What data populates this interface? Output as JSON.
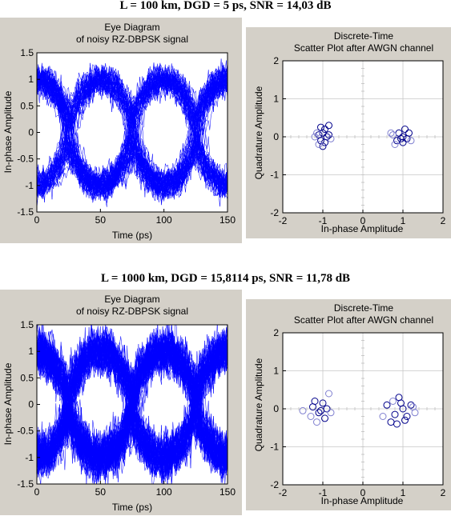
{
  "sections": [
    {
      "heading": "L = 100 km, DGD = 5 ps, SNR = 14,03 dB",
      "eye": {
        "title1": "Eye Diagram",
        "title2": "of noisy RZ-DBPSK signal",
        "xlabel": "Time (ps)",
        "ylabel": "In-phase Amplitude"
      },
      "scatter": {
        "title1": "Discrete-Time",
        "title2": "Scatter Plot after AWGN channel",
        "xlabel": "In-phase Amplitude",
        "ylabel": "Quadrature Amplitude"
      }
    },
    {
      "heading": "L = 1000 km, DGD = 15,8114 ps, SNR = 11,78 dB",
      "eye": {
        "title1": "Eye Diagram",
        "title2": "of noisy RZ-DBPSK signal",
        "xlabel": "Time (ps)",
        "ylabel": "In-phase Amplitude"
      },
      "scatter": {
        "title1": "Discrete-Time",
        "title2": "Scatter Plot after AWGN channel",
        "xlabel": "In-phase Amplitude",
        "ylabel": "Quadrature Amplitude"
      }
    }
  ],
  "chart_data": [
    {
      "type": "line",
      "subtype": "eye-diagram",
      "title": "Eye Diagram of noisy RZ-DBPSK signal",
      "xlabel": "Time (ps)",
      "ylabel": "In-phase Amplitude",
      "xlim": [
        0,
        150
      ],
      "ylim": [
        -1.5,
        1.5
      ],
      "xticks": [
        0,
        50,
        100,
        150
      ],
      "yticks": [
        -1.5,
        -1,
        -0.5,
        0,
        0.5,
        1,
        1.5
      ],
      "symbol_period_ps": 50,
      "crossing_times_ps": [
        0,
        50,
        100,
        150
      ],
      "levels": [
        -1,
        1
      ],
      "noise_std": 0.1,
      "trace_count": 90,
      "trace_color": "#0000ff",
      "grid": false
    },
    {
      "type": "scatter",
      "title": "Discrete-Time Scatter Plot after AWGN channel",
      "xlabel": "In-phase Amplitude",
      "ylabel": "Quadrature Amplitude",
      "xlim": [
        -2,
        2
      ],
      "ylim": [
        -2,
        2
      ],
      "xticks": [
        -2,
        -1,
        0,
        1,
        2
      ],
      "yticks": [
        -2,
        -1,
        0,
        1,
        2
      ],
      "grid": true,
      "series": [
        {
          "color": "#00008b",
          "points": [
            [
              -1.05,
              0.25
            ],
            [
              -0.95,
              0.2
            ],
            [
              -0.85,
              0.3
            ],
            [
              -1.0,
              0.1
            ],
            [
              -0.9,
              0.0
            ],
            [
              -1.05,
              -0.1
            ],
            [
              -0.95,
              -0.15
            ],
            [
              -1.0,
              -0.25
            ],
            [
              -0.85,
              0.05
            ],
            [
              -1.1,
              0.05
            ],
            [
              0.9,
              0.1
            ],
            [
              1.05,
              0.2
            ],
            [
              0.95,
              -0.05
            ],
            [
              1.0,
              -0.15
            ],
            [
              1.1,
              -0.05
            ],
            [
              1.15,
              0.1
            ],
            [
              0.85,
              -0.1
            ],
            [
              1.0,
              0.0
            ]
          ]
        },
        {
          "color": "#8080d0",
          "points": [
            [
              -1.15,
              0.1
            ],
            [
              -1.1,
              -0.2
            ],
            [
              -0.8,
              -0.05
            ],
            [
              -1.2,
              0.0
            ],
            [
              0.75,
              0.05
            ],
            [
              0.8,
              -0.2
            ],
            [
              1.2,
              -0.1
            ],
            [
              0.7,
              0.1
            ]
          ]
        }
      ]
    },
    {
      "type": "line",
      "subtype": "eye-diagram",
      "title": "Eye Diagram of noisy RZ-DBPSK signal",
      "xlabel": "Time (ps)",
      "ylabel": "In-phase Amplitude",
      "xlim": [
        0,
        150
      ],
      "ylim": [
        -1.5,
        1.5
      ],
      "xticks": [
        0,
        50,
        100,
        150
      ],
      "yticks": [
        -1.5,
        -1,
        -0.5,
        0,
        0.5,
        1,
        1.5
      ],
      "symbol_period_ps": 50,
      "crossing_times_ps": [
        0,
        50,
        100,
        150
      ],
      "levels": [
        -1,
        1
      ],
      "noise_std": 0.18,
      "trace_count": 110,
      "trace_color": "#0000ff",
      "grid": false
    },
    {
      "type": "scatter",
      "title": "Discrete-Time Scatter Plot after AWGN channel",
      "xlabel": "In-phase Amplitude",
      "ylabel": "Quadrature Amplitude",
      "xlim": [
        -2,
        2
      ],
      "ylim": [
        -2,
        2
      ],
      "xticks": [
        -2,
        -1,
        0,
        1,
        2
      ],
      "yticks": [
        -2,
        -1,
        0,
        1,
        2
      ],
      "grid": true,
      "series": [
        {
          "color": "#00008b",
          "points": [
            [
              -1.2,
              0.2
            ],
            [
              -1.0,
              0.15
            ],
            [
              -0.9,
              0.0
            ],
            [
              -1.1,
              -0.1
            ],
            [
              -0.95,
              -0.25
            ],
            [
              -1.05,
              -0.05
            ],
            [
              -1.25,
              0.05
            ],
            [
              0.6,
              0.1
            ],
            [
              0.8,
              -0.15
            ],
            [
              0.9,
              0.3
            ],
            [
              1.0,
              0.0
            ],
            [
              1.1,
              -0.2
            ],
            [
              1.2,
              0.1
            ],
            [
              0.7,
              -0.35
            ],
            [
              0.85,
              -0.4
            ],
            [
              1.05,
              -0.3
            ],
            [
              0.95,
              0.15
            ]
          ]
        },
        {
          "color": "#8080d0",
          "points": [
            [
              -1.5,
              -0.05
            ],
            [
              -1.3,
              -0.2
            ],
            [
              -0.85,
              0.4
            ],
            [
              -1.15,
              -0.35
            ],
            [
              -0.8,
              -0.1
            ],
            [
              0.5,
              -0.2
            ],
            [
              1.3,
              -0.1
            ],
            [
              0.75,
              0.2
            ],
            [
              1.25,
              0.05
            ]
          ]
        }
      ]
    }
  ]
}
